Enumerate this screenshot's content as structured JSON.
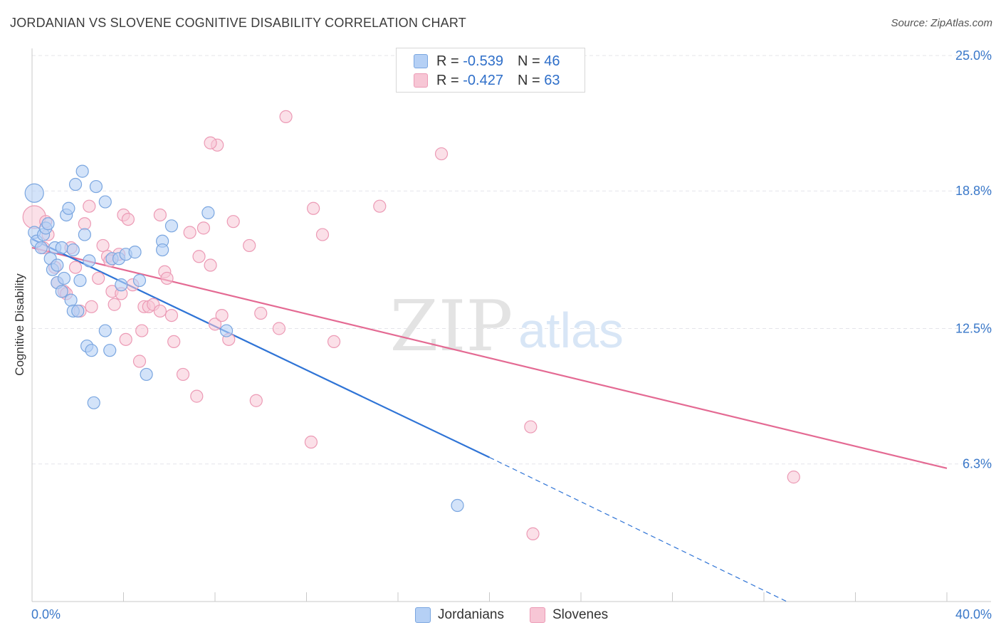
{
  "header": {
    "title": "JORDANIAN VS SLOVENE COGNITIVE DISABILITY CORRELATION CHART",
    "source": "Source: ZipAtlas.com"
  },
  "watermark": {
    "zip": "ZIP",
    "atlas": "atlas"
  },
  "legend": {
    "jordanians": {
      "r_label": "R =",
      "r_value": "-0.539",
      "n_label": "N =",
      "n_value": "46"
    },
    "slovenes": {
      "r_label": "R =",
      "r_value": "-0.427",
      "n_label": "N =",
      "n_value": "63"
    }
  },
  "colors": {
    "jordanians_fill": "#b5d0f5",
    "jordanians_stroke": "#7aa6e0",
    "jordanians_line": "#2f74d6",
    "slovenes_fill": "#f7c6d5",
    "slovenes_stroke": "#ec9ab5",
    "slovenes_line": "#e46a93",
    "tick_label": "#3a78c9",
    "grid": "#e4e4ea"
  },
  "chart_data": {
    "type": "scatter",
    "title": "JORDANIAN VS SLOVENE COGNITIVE DISABILITY CORRELATION CHART",
    "xlabel": "",
    "ylabel": "Cognitive Disability",
    "xlim": [
      0,
      40
    ],
    "ylim": [
      0,
      25
    ],
    "x_tick_labels": [
      "0.0%",
      "40.0%"
    ],
    "y_ticks": [
      6.3,
      12.5,
      18.8,
      25.0
    ],
    "y_tick_labels": [
      "6.3%",
      "12.5%",
      "18.8%",
      "25.0%"
    ],
    "grid": true,
    "legend_position": "bottom-center",
    "series": [
      {
        "name": "Jordanians",
        "points": [
          [
            0.1,
            18.7
          ],
          [
            0.1,
            16.9
          ],
          [
            0.2,
            16.5
          ],
          [
            0.4,
            16.2
          ],
          [
            0.5,
            16.8
          ],
          [
            0.6,
            17.1
          ],
          [
            0.7,
            17.3
          ],
          [
            0.8,
            15.7
          ],
          [
            0.9,
            15.2
          ],
          [
            1.0,
            16.2
          ],
          [
            1.1,
            15.4
          ],
          [
            1.1,
            14.6
          ],
          [
            1.3,
            16.2
          ],
          [
            1.3,
            14.2
          ],
          [
            1.4,
            14.8
          ],
          [
            1.5,
            17.7
          ],
          [
            1.6,
            18.0
          ],
          [
            1.7,
            13.8
          ],
          [
            1.8,
            16.1
          ],
          [
            1.8,
            13.3
          ],
          [
            1.9,
            19.1
          ],
          [
            2.0,
            13.3
          ],
          [
            2.1,
            14.7
          ],
          [
            2.2,
            19.7
          ],
          [
            2.3,
            16.8
          ],
          [
            2.4,
            11.7
          ],
          [
            2.5,
            15.6
          ],
          [
            2.6,
            11.5
          ],
          [
            2.7,
            9.1
          ],
          [
            2.8,
            19.0
          ],
          [
            3.2,
            18.3
          ],
          [
            3.2,
            12.4
          ],
          [
            3.4,
            11.5
          ],
          [
            3.5,
            15.7
          ],
          [
            3.8,
            15.7
          ],
          [
            3.9,
            14.5
          ],
          [
            4.1,
            15.9
          ],
          [
            4.5,
            16.0
          ],
          [
            4.7,
            14.7
          ],
          [
            5.0,
            10.4
          ],
          [
            5.7,
            16.5
          ],
          [
            5.7,
            16.1
          ],
          [
            6.1,
            17.2
          ],
          [
            7.7,
            17.8
          ],
          [
            8.5,
            12.4
          ],
          [
            18.6,
            4.4
          ]
        ],
        "trend": [
          [
            0.0,
            16.6
          ],
          [
            20.0,
            6.6
          ]
        ],
        "trend_extension": [
          [
            20.0,
            6.6
          ],
          [
            33.0,
            0.0
          ]
        ]
      },
      {
        "name": "Slovenes",
        "points": [
          [
            0.1,
            17.6
          ],
          [
            0.5,
            16.2
          ],
          [
            0.6,
            17.4
          ],
          [
            0.7,
            16.8
          ],
          [
            1.0,
            15.3
          ],
          [
            1.1,
            14.6
          ],
          [
            1.4,
            14.2
          ],
          [
            1.5,
            14.1
          ],
          [
            1.7,
            16.2
          ],
          [
            1.9,
            15.3
          ],
          [
            2.1,
            13.3
          ],
          [
            2.3,
            17.3
          ],
          [
            2.5,
            18.1
          ],
          [
            2.6,
            13.5
          ],
          [
            2.9,
            14.8
          ],
          [
            3.1,
            16.3
          ],
          [
            3.3,
            15.8
          ],
          [
            3.4,
            15.6
          ],
          [
            3.5,
            14.2
          ],
          [
            3.6,
            13.6
          ],
          [
            3.8,
            15.9
          ],
          [
            3.9,
            14.1
          ],
          [
            4.0,
            17.7
          ],
          [
            4.1,
            12.0
          ],
          [
            4.2,
            17.5
          ],
          [
            4.4,
            14.5
          ],
          [
            4.7,
            11.0
          ],
          [
            4.8,
            12.4
          ],
          [
            4.9,
            13.5
          ],
          [
            5.1,
            13.5
          ],
          [
            5.3,
            13.6
          ],
          [
            5.6,
            17.7
          ],
          [
            5.6,
            13.3
          ],
          [
            5.8,
            15.1
          ],
          [
            5.9,
            14.8
          ],
          [
            6.1,
            13.1
          ],
          [
            6.2,
            11.9
          ],
          [
            6.6,
            10.4
          ],
          [
            6.9,
            16.9
          ],
          [
            7.2,
            9.4
          ],
          [
            7.3,
            15.8
          ],
          [
            7.5,
            17.1
          ],
          [
            7.8,
            15.4
          ],
          [
            8.0,
            12.7
          ],
          [
            8.1,
            20.9
          ],
          [
            8.3,
            13.1
          ],
          [
            8.6,
            12.0
          ],
          [
            8.8,
            17.4
          ],
          [
            9.5,
            16.3
          ],
          [
            9.8,
            9.2
          ],
          [
            10.0,
            13.2
          ],
          [
            10.8,
            12.5
          ],
          [
            11.1,
            22.2
          ],
          [
            12.2,
            7.3
          ],
          [
            12.3,
            18.0
          ],
          [
            12.7,
            16.8
          ],
          [
            13.2,
            11.9
          ],
          [
            15.2,
            18.1
          ],
          [
            17.9,
            20.5
          ],
          [
            21.8,
            8.0
          ],
          [
            21.9,
            3.1
          ],
          [
            33.3,
            5.7
          ],
          [
            7.8,
            21.0
          ]
        ],
        "trend": [
          [
            0.0,
            16.2
          ],
          [
            40.0,
            6.1
          ]
        ]
      }
    ]
  },
  "bottom_legend": {
    "jordanians": "Jordanians",
    "slovenes": "Slovenes"
  }
}
